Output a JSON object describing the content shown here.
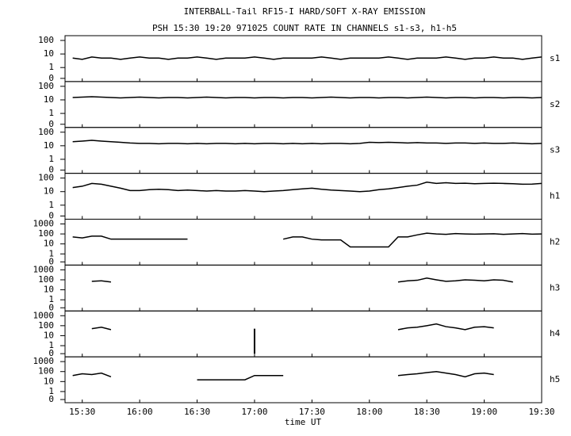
{
  "chart_data": {
    "type": "line",
    "title": "INTERBALL-Tail RF15-I HARD/SOFT X-RAY EMISSION",
    "subtitle": "PSH 15:30 19:20 971025  COUNT RATE IN CHANNELS s1-s3, h1-h5",
    "xlabel": "time UT",
    "color": "#000000",
    "yscale": "log",
    "xlim": [
      "15:21",
      "19:30"
    ],
    "xticks": [
      "15:30",
      "16:00",
      "16:30",
      "17:00",
      "17:30",
      "18:00",
      "18:30",
      "19:00",
      "19:30"
    ],
    "x": [
      "15:25",
      "15:30",
      "15:35",
      "15:40",
      "15:45",
      "15:50",
      "15:55",
      "16:00",
      "16:05",
      "16:10",
      "16:15",
      "16:20",
      "16:25",
      "16:30",
      "16:35",
      "16:40",
      "16:45",
      "16:50",
      "16:55",
      "17:00",
      "17:05",
      "17:10",
      "17:15",
      "17:20",
      "17:25",
      "17:30",
      "17:35",
      "17:40",
      "17:45",
      "17:50",
      "17:55",
      "18:00",
      "18:05",
      "18:10",
      "18:15",
      "18:20",
      "18:25",
      "18:30",
      "18:35",
      "18:40",
      "18:45",
      "18:50",
      "18:55",
      "19:00",
      "19:05",
      "19:10",
      "19:15",
      "19:20",
      "19:25",
      "19:30"
    ],
    "series": [
      {
        "name": "s1",
        "ylim": [
          0,
          100
        ],
        "yticks": [
          0,
          1,
          10,
          100
        ],
        "values": [
          5,
          4,
          6,
          5,
          5,
          4,
          5,
          6,
          5,
          5,
          4,
          5,
          5,
          6,
          5,
          4,
          5,
          5,
          5,
          6,
          5,
          4,
          5,
          5,
          5,
          5,
          6,
          5,
          4,
          5,
          5,
          5,
          5,
          6,
          5,
          4,
          5,
          5,
          5,
          6,
          5,
          4,
          5,
          5,
          6,
          5,
          5,
          4,
          5,
          6
        ]
      },
      {
        "name": "s2",
        "ylim": [
          0,
          100
        ],
        "yticks": [
          0,
          1,
          10,
          100
        ],
        "values": [
          15,
          16,
          17,
          16,
          15,
          14,
          15,
          16,
          15,
          14,
          15,
          15,
          14,
          15,
          16,
          15,
          14,
          15,
          15,
          14,
          15,
          15,
          14,
          15,
          15,
          14,
          15,
          16,
          15,
          14,
          15,
          15,
          14,
          15,
          15,
          14,
          15,
          16,
          15,
          14,
          15,
          15,
          14,
          15,
          15,
          14,
          15,
          15,
          14,
          15
        ]
      },
      {
        "name": "s3",
        "ylim": [
          0,
          100
        ],
        "yticks": [
          0,
          1,
          10,
          100
        ],
        "values": [
          20,
          22,
          25,
          22,
          20,
          18,
          16,
          15,
          15,
          14,
          15,
          15,
          14,
          15,
          14,
          15,
          15,
          14,
          15,
          14,
          15,
          15,
          14,
          15,
          14,
          15,
          14,
          15,
          15,
          14,
          15,
          18,
          17,
          18,
          17,
          16,
          17,
          16,
          16,
          15,
          16,
          16,
          15,
          16,
          15,
          15,
          16,
          15,
          14,
          15
        ]
      },
      {
        "name": "h1",
        "ylim": [
          0,
          100
        ],
        "yticks": [
          0,
          1,
          10,
          100
        ],
        "values": [
          20,
          25,
          40,
          35,
          25,
          18,
          12,
          12,
          14,
          15,
          14,
          12,
          13,
          12,
          11,
          12,
          11,
          11,
          12,
          11,
          10,
          11,
          12,
          14,
          16,
          18,
          15,
          13,
          12,
          11,
          10,
          11,
          14,
          16,
          20,
          25,
          30,
          50,
          40,
          45,
          40,
          42,
          38,
          40,
          42,
          40,
          38,
          35,
          36,
          40
        ]
      },
      {
        "name": "h2",
        "ylim": [
          0,
          1000
        ],
        "yticks": [
          0,
          1,
          10,
          100,
          1000
        ],
        "values": [
          50,
          40,
          60,
          60,
          30,
          30,
          30,
          30,
          30,
          30,
          30,
          30,
          30,
          null,
          null,
          null,
          null,
          null,
          null,
          null,
          null,
          null,
          30,
          50,
          50,
          30,
          25,
          25,
          25,
          5,
          5,
          5,
          5,
          5,
          50,
          50,
          80,
          120,
          100,
          90,
          110,
          100,
          95,
          100,
          105,
          90,
          100,
          110,
          95,
          100
        ]
      },
      {
        "name": "h3",
        "ylim": [
          0,
          1000
        ],
        "yticks": [
          0,
          1,
          10,
          100,
          1000
        ],
        "values": [
          null,
          null,
          70,
          80,
          60,
          null,
          null,
          null,
          null,
          null,
          null,
          null,
          null,
          null,
          null,
          null,
          null,
          null,
          null,
          null,
          null,
          null,
          null,
          null,
          null,
          null,
          null,
          null,
          null,
          null,
          null,
          null,
          null,
          null,
          60,
          80,
          90,
          150,
          100,
          70,
          80,
          100,
          90,
          80,
          100,
          90,
          60,
          null,
          null,
          null
        ]
      },
      {
        "name": "h4",
        "ylim": [
          0,
          1000
        ],
        "yticks": [
          0,
          1,
          10,
          100,
          1000
        ],
        "values": [
          null,
          null,
          50,
          70,
          40,
          null,
          null,
          null,
          null,
          null,
          null,
          null,
          null,
          null,
          null,
          null,
          null,
          null,
          null,
          50,
          null,
          null,
          null,
          null,
          null,
          null,
          null,
          null,
          null,
          null,
          null,
          null,
          null,
          null,
          40,
          60,
          70,
          100,
          150,
          80,
          60,
          40,
          70,
          80,
          60,
          null,
          null,
          null,
          null,
          null
        ]
      },
      {
        "name": "h5",
        "ylim": [
          0,
          1000
        ],
        "yticks": [
          0,
          1,
          10,
          100,
          1000
        ],
        "values": [
          40,
          60,
          50,
          70,
          30,
          null,
          null,
          null,
          null,
          null,
          null,
          null,
          null,
          15,
          15,
          15,
          15,
          15,
          15,
          40,
          40,
          40,
          40,
          null,
          null,
          null,
          null,
          null,
          null,
          null,
          null,
          null,
          null,
          null,
          40,
          50,
          60,
          80,
          100,
          70,
          50,
          30,
          60,
          70,
          50,
          null,
          null,
          null,
          null,
          null
        ]
      }
    ]
  }
}
